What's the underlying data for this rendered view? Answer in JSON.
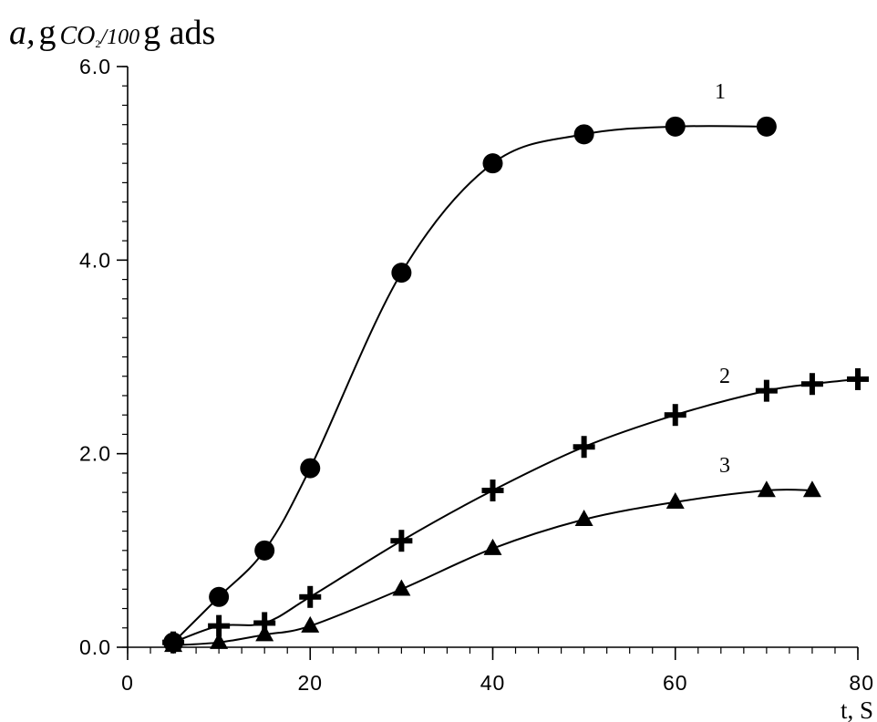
{
  "chart_data": {
    "type": "line",
    "ylabel": {
      "symbol": "a,",
      "unit_prefix": "g",
      "species": "CO",
      "subscript": "2",
      "per": "/100",
      "unit_suffix": "g ads"
    },
    "xlabel": "t, S",
    "xlim": [
      0,
      80
    ],
    "ylim": [
      0.0,
      6.0
    ],
    "x_ticks": [
      0,
      20,
      40,
      60,
      80
    ],
    "x_tick_labels": [
      "0",
      "20",
      "40",
      "60",
      "80"
    ],
    "y_ticks": [
      0.0,
      2.0,
      4.0,
      6.0
    ],
    "y_tick_labels": [
      "0.0",
      "2.0",
      "4.0",
      "6.0"
    ],
    "grid": false,
    "series": [
      {
        "name": "1",
        "marker": "circle",
        "x": [
          5,
          10,
          15,
          20,
          30,
          40,
          50,
          60,
          70
        ],
        "y": [
          0.05,
          0.52,
          1.0,
          1.85,
          3.87,
          5.0,
          5.3,
          5.38,
          5.38
        ]
      },
      {
        "name": "2",
        "marker": "cross",
        "x": [
          5,
          10,
          15,
          20,
          30,
          40,
          50,
          60,
          70,
          75,
          80
        ],
        "y": [
          0.05,
          0.22,
          0.25,
          0.52,
          1.1,
          1.62,
          2.07,
          2.4,
          2.65,
          2.72,
          2.77
        ]
      },
      {
        "name": "3",
        "marker": "triangle",
        "x": [
          5,
          10,
          15,
          20,
          30,
          40,
          50,
          60,
          70,
          75
        ],
        "y": [
          0.02,
          0.05,
          0.13,
          0.22,
          0.6,
          1.02,
          1.32,
          1.5,
          1.62,
          1.62
        ]
      }
    ]
  }
}
